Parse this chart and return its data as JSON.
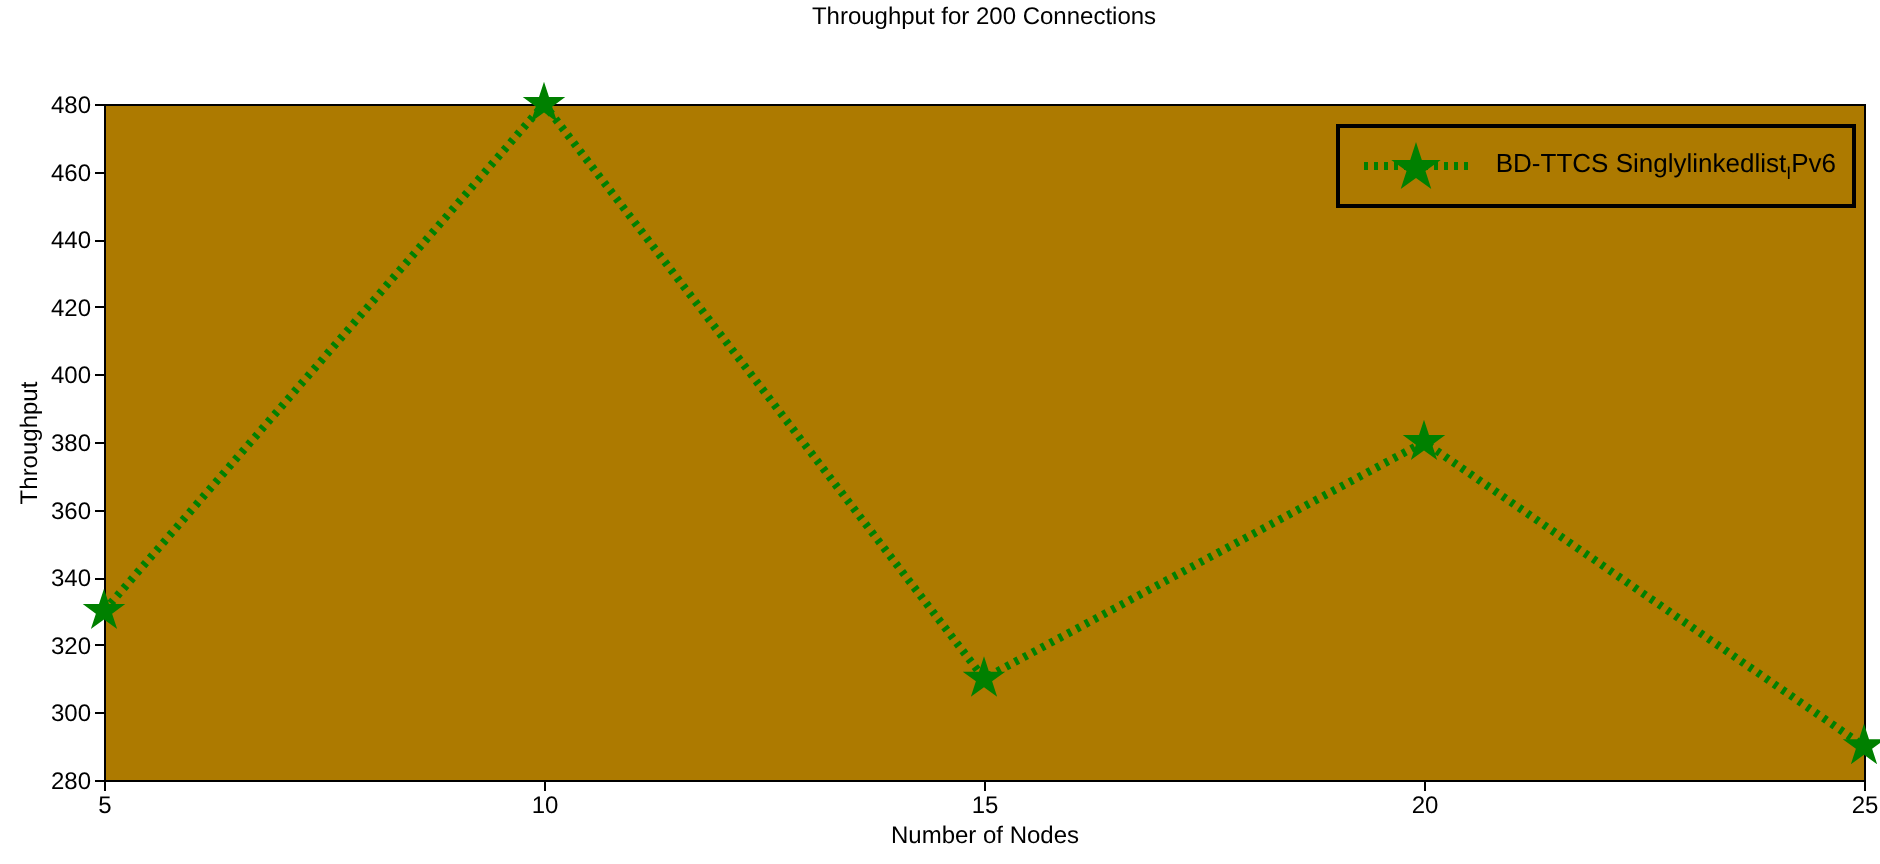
{
  "chart_data": {
    "type": "line",
    "title": "Throughput for 200 Connections",
    "xlabel": "Number of Nodes",
    "ylabel": "Throughput",
    "x": [
      5,
      10,
      15,
      20,
      25
    ],
    "series": [
      {
        "name": "BD-TTCS Singlylinkedlist$_{I}$Pv6",
        "color": "#008000",
        "values": [
          330,
          480,
          310,
          380,
          290
        ]
      }
    ],
    "xlim": [
      5,
      25
    ],
    "xticks": [
      5,
      10,
      15,
      20,
      25
    ],
    "ylim": [
      280,
      480
    ],
    "yticks": [
      280,
      300,
      320,
      340,
      360,
      380,
      400,
      420,
      440,
      460,
      480
    ],
    "grid": false,
    "legend": "top right",
    "marker": "star",
    "line_style": "dotted"
  }
}
